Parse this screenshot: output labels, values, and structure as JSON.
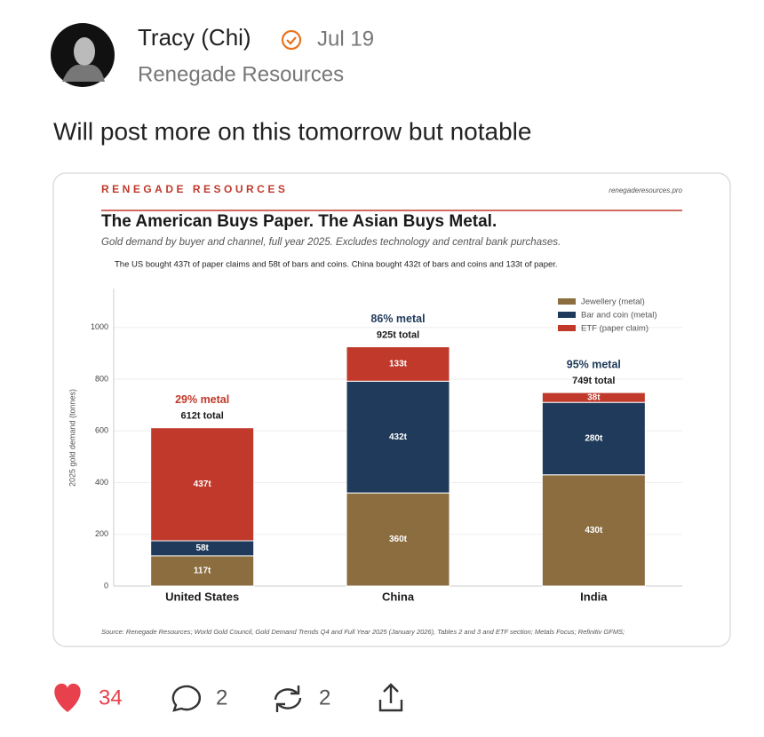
{
  "author": {
    "name": "Tracy (Chi)",
    "date": "Jul 19",
    "publication": "Renegade Resources"
  },
  "post_text": "Will post more on this tomorrow but notable",
  "chart_data": {
    "type": "bar",
    "stacked": true,
    "brand": "RENEGADE RESOURCES",
    "site": "renegaderesources.pro",
    "title": "The American Buys Paper. The Asian Buys Metal.",
    "subtitle": "Gold demand by buyer and channel, full year 2025. Excludes technology and central bank purchases.",
    "note": "The US bought 437t of paper claims and 58t of bars and coins. China bought 432t of bars and coins and 133t of paper.",
    "y_label": "2025 gold demand (tonnes)",
    "categories": [
      "United States",
      "China",
      "India"
    ],
    "series": [
      {
        "name": "Jewellery (metal)",
        "color": "#8b6d3f",
        "values": [
          117,
          360,
          430
        ],
        "value_labels": [
          "117t",
          "360t",
          "430t"
        ]
      },
      {
        "name": "Bar and coin (metal)",
        "color": "#1f3a5a",
        "values": [
          58,
          432,
          280
        ],
        "value_labels": [
          "58t",
          "432t",
          "280t"
        ]
      },
      {
        "name": "ETF (paper claim)",
        "color": "#c0392b",
        "values": [
          437,
          133,
          38
        ],
        "value_labels": [
          "437t",
          "133t",
          "38t"
        ]
      }
    ],
    "annotations": [
      {
        "text": "29% metal",
        "color": "#c0392b"
      },
      {
        "text": "86% metal",
        "color": "#1f3a5a"
      },
      {
        "text": "95% metal",
        "color": "#1f3a5a"
      }
    ],
    "totals": [
      "612t total",
      "925t total",
      "749t total"
    ],
    "ylim": [
      0,
      1150
    ],
    "yticks": [
      0,
      200,
      400,
      600,
      800,
      1000
    ],
    "grid": true,
    "legend": "upper right",
    "source": "Source: Renegade Resources; World Gold Council, Gold Demand Trends Q4 and Full Year 2025 (January 2026), Tables 2 and 3 and ETF section; Metals Focus; Refinitiv GFMS;"
  },
  "actions": {
    "likes": 34,
    "comments": 2,
    "reposts": 2
  }
}
